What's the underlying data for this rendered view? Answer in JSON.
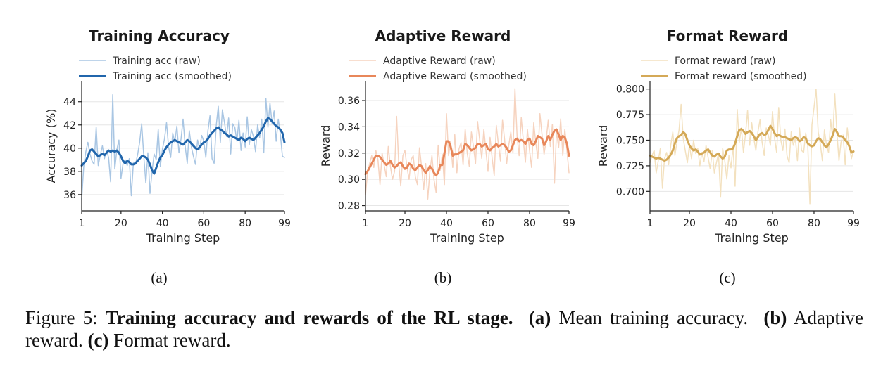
{
  "chart_data": [
    {
      "type": "line",
      "title": "Training Accuracy",
      "xlabel": "Training Step",
      "ylabel": "Accuracy (%)",
      "xlim": [
        1,
        99
      ],
      "ylim": [
        34.6,
        45.8
      ],
      "xticks": [
        1,
        20,
        40,
        60,
        80,
        99
      ],
      "yticks": [
        36,
        38,
        40,
        42,
        44
      ],
      "ytick_labels": [
        "36",
        "38",
        "40",
        "42",
        "44"
      ],
      "grid": "horizontal",
      "legend_position": "top-left",
      "color": "#2166ac",
      "raw_color": "#a9c6e3",
      "x": [
        1,
        2,
        3,
        4,
        5,
        6,
        7,
        8,
        9,
        10,
        11,
        12,
        13,
        14,
        15,
        16,
        17,
        18,
        19,
        20,
        21,
        22,
        23,
        24,
        25,
        26,
        27,
        28,
        29,
        30,
        31,
        32,
        33,
        34,
        35,
        36,
        37,
        38,
        39,
        40,
        41,
        42,
        43,
        44,
        45,
        46,
        47,
        48,
        49,
        50,
        51,
        52,
        53,
        54,
        55,
        56,
        57,
        58,
        59,
        60,
        61,
        62,
        63,
        64,
        65,
        66,
        67,
        68,
        69,
        70,
        71,
        72,
        73,
        74,
        75,
        76,
        77,
        78,
        79,
        80,
        81,
        82,
        83,
        84,
        85,
        86,
        87,
        88,
        89,
        90,
        91,
        92,
        93,
        94,
        95,
        96,
        97,
        98,
        99
      ],
      "series": [
        {
          "name": "Training acc (raw)",
          "style": "raw",
          "values": [
            35.6,
            38.4,
            39.7,
            40.5,
            39.5,
            38.9,
            38.6,
            41.8,
            38.5,
            39.4,
            40.2,
            39.1,
            39.8,
            39.2,
            37.1,
            44.6,
            38.2,
            39.9,
            40.7,
            37.4,
            38.7,
            39.0,
            38.5,
            39.1,
            35.9,
            38.8,
            38.6,
            39.4,
            40.5,
            42.1,
            39.3,
            37.0,
            39.6,
            36.1,
            38.0,
            39.5,
            39.0,
            41.6,
            38.4,
            39.9,
            40.8,
            42.2,
            40.1,
            39.2,
            41.3,
            40.5,
            41.9,
            39.6,
            40.8,
            42.5,
            40.2,
            38.7,
            41.5,
            40.1,
            39.3,
            38.6,
            40.7,
            39.9,
            41.1,
            40.6,
            39.2,
            41.5,
            42.8,
            39.1,
            38.7,
            41.9,
            43.6,
            40.5,
            43.3,
            42.2,
            41.0,
            42.6,
            39.5,
            42.1,
            41.8,
            40.6,
            42.4,
            39.8,
            41.3,
            40.1,
            42.7,
            40.3,
            41.6,
            41.0,
            39.7,
            42.0,
            40.9,
            42.5,
            39.6,
            44.3,
            41.8,
            43.9,
            42.1,
            43.2,
            40.6,
            42.5,
            41.2,
            39.3,
            39.2
          ]
        },
        {
          "name": "Training acc (smoothed)",
          "style": "smoothed",
          "values": [
            38.5,
            38.7,
            38.9,
            39.3,
            39.8,
            39.9,
            39.7,
            39.5,
            39.3,
            39.4,
            39.5,
            39.4,
            39.6,
            39.8,
            39.7,
            39.8,
            39.7,
            39.8,
            39.6,
            39.3,
            38.9,
            38.7,
            38.9,
            38.8,
            38.6,
            38.6,
            38.7,
            38.9,
            39.1,
            39.3,
            39.3,
            39.2,
            39.0,
            38.6,
            38.1,
            37.8,
            38.3,
            38.8,
            39.2,
            39.4,
            39.8,
            40.1,
            40.3,
            40.5,
            40.6,
            40.7,
            40.6,
            40.5,
            40.4,
            40.3,
            40.5,
            40.7,
            40.6,
            40.4,
            40.2,
            40.0,
            39.9,
            40.1,
            40.3,
            40.5,
            40.6,
            40.8,
            41.1,
            41.3,
            41.5,
            41.7,
            41.8,
            41.6,
            41.5,
            41.3,
            41.2,
            41.0,
            41.1,
            41.0,
            40.9,
            40.8,
            40.7,
            40.9,
            40.8,
            40.6,
            40.8,
            40.9,
            40.8,
            40.7,
            40.9,
            41.1,
            41.3,
            41.6,
            41.9,
            42.3,
            42.6,
            42.5,
            42.3,
            42.1,
            41.9,
            41.8,
            41.6,
            41.3,
            40.5
          ]
        }
      ]
    },
    {
      "type": "line",
      "title": "Adaptive Reward",
      "xlabel": "Training Step",
      "ylabel": "Reward",
      "xlim": [
        1,
        99
      ],
      "ylim": [
        0.276,
        0.375
      ],
      "xticks": [
        1,
        20,
        40,
        60,
        80,
        99
      ],
      "yticks": [
        0.28,
        0.3,
        0.32,
        0.34,
        0.36
      ],
      "ytick_labels": [
        "0.28",
        "0.30",
        "0.32",
        "0.34",
        "0.36"
      ],
      "grid": "horizontal",
      "legend_position": "top-left",
      "color": "#e8875a",
      "raw_color": "#f6d3bf",
      "x": [
        1,
        2,
        3,
        4,
        5,
        6,
        7,
        8,
        9,
        10,
        11,
        12,
        13,
        14,
        15,
        16,
        17,
        18,
        19,
        20,
        21,
        22,
        23,
        24,
        25,
        26,
        27,
        28,
        29,
        30,
        31,
        32,
        33,
        34,
        35,
        36,
        37,
        38,
        39,
        40,
        41,
        42,
        43,
        44,
        45,
        46,
        47,
        48,
        49,
        50,
        51,
        52,
        53,
        54,
        55,
        56,
        57,
        58,
        59,
        60,
        61,
        62,
        63,
        64,
        65,
        66,
        67,
        68,
        69,
        70,
        71,
        72,
        73,
        74,
        75,
        76,
        77,
        78,
        79,
        80,
        81,
        82,
        83,
        84,
        85,
        86,
        87,
        88,
        89,
        90,
        91,
        92,
        93,
        94,
        95,
        96,
        97,
        98,
        99
      ],
      "series": [
        {
          "name": "Adaptive Reward (raw)",
          "style": "raw",
          "values": [
            0.288,
            0.305,
            0.312,
            0.318,
            0.309,
            0.322,
            0.315,
            0.296,
            0.32,
            0.311,
            0.302,
            0.325,
            0.31,
            0.3,
            0.306,
            0.348,
            0.312,
            0.295,
            0.318,
            0.322,
            0.309,
            0.3,
            0.315,
            0.318,
            0.302,
            0.296,
            0.324,
            0.31,
            0.292,
            0.312,
            0.285,
            0.306,
            0.318,
            0.3,
            0.29,
            0.326,
            0.307,
            0.319,
            0.296,
            0.35,
            0.318,
            0.329,
            0.309,
            0.334,
            0.305,
            0.323,
            0.328,
            0.311,
            0.338,
            0.32,
            0.31,
            0.336,
            0.325,
            0.312,
            0.344,
            0.33,
            0.316,
            0.338,
            0.322,
            0.306,
            0.332,
            0.316,
            0.303,
            0.341,
            0.327,
            0.314,
            0.345,
            0.33,
            0.312,
            0.326,
            0.336,
            0.32,
            0.369,
            0.333,
            0.318,
            0.347,
            0.33,
            0.313,
            0.338,
            0.322,
            0.309,
            0.343,
            0.328,
            0.316,
            0.35,
            0.334,
            0.319,
            0.33,
            0.345,
            0.325,
            0.342,
            0.297,
            0.337,
            0.324,
            0.346,
            0.318,
            0.338,
            0.322,
            0.305
          ]
        },
        {
          "name": "Adaptive Reward (smoothed)",
          "style": "smoothed",
          "values": [
            0.304,
            0.306,
            0.309,
            0.312,
            0.315,
            0.318,
            0.318,
            0.317,
            0.315,
            0.313,
            0.311,
            0.312,
            0.314,
            0.311,
            0.309,
            0.31,
            0.312,
            0.313,
            0.31,
            0.308,
            0.309,
            0.312,
            0.311,
            0.308,
            0.307,
            0.309,
            0.311,
            0.31,
            0.307,
            0.305,
            0.307,
            0.31,
            0.308,
            0.305,
            0.303,
            0.305,
            0.311,
            0.311,
            0.32,
            0.329,
            0.329,
            0.325,
            0.318,
            0.319,
            0.319,
            0.32,
            0.321,
            0.322,
            0.327,
            0.326,
            0.324,
            0.322,
            0.323,
            0.324,
            0.327,
            0.327,
            0.325,
            0.326,
            0.327,
            0.323,
            0.322,
            0.324,
            0.325,
            0.327,
            0.325,
            0.326,
            0.327,
            0.326,
            0.324,
            0.321,
            0.322,
            0.326,
            0.33,
            0.331,
            0.329,
            0.33,
            0.329,
            0.327,
            0.33,
            0.331,
            0.327,
            0.326,
            0.329,
            0.333,
            0.332,
            0.331,
            0.326,
            0.329,
            0.333,
            0.33,
            0.334,
            0.337,
            0.338,
            0.334,
            0.33,
            0.333,
            0.332,
            0.327,
            0.318
          ]
        }
      ]
    },
    {
      "type": "line",
      "title": "Format Reward",
      "xlabel": "Training Step",
      "ylabel": "Reward",
      "xlim": [
        1,
        99
      ],
      "ylim": [
        0.681,
        0.808
      ],
      "xticks": [
        1,
        20,
        40,
        60,
        80,
        99
      ],
      "yticks": [
        0.7,
        0.725,
        0.75,
        0.775,
        0.8
      ],
      "ytick_labels": [
        "0.700",
        "0.725",
        "0.750",
        "0.775",
        "0.800"
      ],
      "grid": "horizontal",
      "legend_position": "top-left",
      "color": "#d4a957",
      "raw_color": "#f3e1bf",
      "x": [
        1,
        2,
        3,
        4,
        5,
        6,
        7,
        8,
        9,
        10,
        11,
        12,
        13,
        14,
        15,
        16,
        17,
        18,
        19,
        20,
        21,
        22,
        23,
        24,
        25,
        26,
        27,
        28,
        29,
        30,
        31,
        32,
        33,
        34,
        35,
        36,
        37,
        38,
        39,
        40,
        41,
        42,
        43,
        44,
        45,
        46,
        47,
        48,
        49,
        50,
        51,
        52,
        53,
        54,
        55,
        56,
        57,
        58,
        59,
        60,
        61,
        62,
        63,
        64,
        65,
        66,
        67,
        68,
        69,
        70,
        71,
        72,
        73,
        74,
        75,
        76,
        77,
        78,
        79,
        80,
        81,
        82,
        83,
        84,
        85,
        86,
        87,
        88,
        89,
        90,
        91,
        92,
        93,
        94,
        95,
        96,
        97,
        98,
        99
      ],
      "series": [
        {
          "name": "Format reward (raw)",
          "style": "raw",
          "values": [
            0.728,
            0.735,
            0.74,
            0.718,
            0.73,
            0.742,
            0.703,
            0.732,
            0.738,
            0.726,
            0.745,
            0.758,
            0.735,
            0.748,
            0.76,
            0.785,
            0.752,
            0.74,
            0.728,
            0.745,
            0.732,
            0.75,
            0.737,
            0.742,
            0.725,
            0.738,
            0.729,
            0.745,
            0.733,
            0.722,
            0.74,
            0.718,
            0.728,
            0.737,
            0.695,
            0.742,
            0.73,
            0.712,
            0.735,
            0.723,
            0.744,
            0.705,
            0.78,
            0.748,
            0.762,
            0.738,
            0.756,
            0.779,
            0.745,
            0.767,
            0.752,
            0.74,
            0.758,
            0.77,
            0.748,
            0.735,
            0.762,
            0.755,
            0.745,
            0.778,
            0.752,
            0.738,
            0.782,
            0.75,
            0.74,
            0.761,
            0.735,
            0.728,
            0.758,
            0.745,
            0.752,
            0.73,
            0.762,
            0.74,
            0.738,
            0.757,
            0.745,
            0.688,
            0.765,
            0.782,
            0.8,
            0.758,
            0.747,
            0.73,
            0.76,
            0.745,
            0.738,
            0.77,
            0.752,
            0.795,
            0.758,
            0.73,
            0.748,
            0.755,
            0.726,
            0.762,
            0.745,
            0.732,
            0.74
          ]
        },
        {
          "name": "Format reward (smoothed)",
          "style": "smoothed",
          "values": [
            0.735,
            0.734,
            0.733,
            0.732,
            0.733,
            0.732,
            0.731,
            0.73,
            0.731,
            0.733,
            0.736,
            0.74,
            0.747,
            0.752,
            0.754,
            0.755,
            0.758,
            0.756,
            0.75,
            0.745,
            0.742,
            0.74,
            0.741,
            0.739,
            0.736,
            0.737,
            0.738,
            0.74,
            0.741,
            0.738,
            0.735,
            0.734,
            0.736,
            0.737,
            0.734,
            0.732,
            0.734,
            0.74,
            0.741,
            0.741,
            0.742,
            0.747,
            0.754,
            0.76,
            0.761,
            0.759,
            0.756,
            0.758,
            0.759,
            0.757,
            0.754,
            0.75,
            0.753,
            0.756,
            0.757,
            0.755,
            0.756,
            0.76,
            0.764,
            0.761,
            0.757,
            0.754,
            0.755,
            0.754,
            0.753,
            0.753,
            0.752,
            0.751,
            0.75,
            0.752,
            0.753,
            0.752,
            0.749,
            0.75,
            0.753,
            0.752,
            0.747,
            0.745,
            0.744,
            0.745,
            0.749,
            0.752,
            0.751,
            0.748,
            0.745,
            0.743,
            0.746,
            0.75,
            0.755,
            0.761,
            0.758,
            0.754,
            0.754,
            0.753,
            0.75,
            0.748,
            0.744,
            0.738,
            0.739
          ]
        }
      ]
    }
  ],
  "subfigure_labels": [
    "(a)",
    "(b)",
    "(c)"
  ],
  "caption": {
    "prefix": "Figure 5: ",
    "bold": "Training accuracy and rewards of the RL stage.",
    "part_a_label": "(a)",
    "part_a_text": " Mean training accuracy.",
    "part_b_label": "(b)",
    "part_b_text": " Adaptive reward.",
    "part_c_label": "(c)",
    "part_c_text": " Format reward."
  }
}
